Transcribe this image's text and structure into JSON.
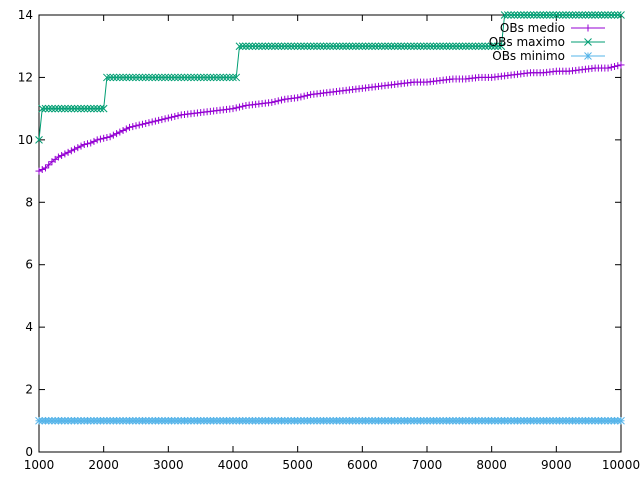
{
  "chart_data": {
    "type": "line",
    "xlim": [
      1000,
      10000
    ],
    "ylim": [
      0,
      14
    ],
    "xticks": [
      1000,
      2000,
      3000,
      4000,
      5000,
      6000,
      7000,
      8000,
      9000,
      10000
    ],
    "yticks": [
      0,
      2,
      4,
      6,
      8,
      10,
      12,
      14
    ],
    "grid": false,
    "legend_position": "top-right",
    "series": [
      {
        "name": "OBs medio",
        "color": "#9400d3",
        "marker": "plus",
        "x": [
          1000,
          1050,
          1100,
          1150,
          1200,
          1300,
          1400,
          1500,
          1600,
          1700,
          1800,
          1900,
          2000,
          2100,
          2200,
          2300,
          2400,
          2500,
          2600,
          2700,
          2800,
          2900,
          3000,
          3200,
          3400,
          3600,
          3800,
          4000,
          4200,
          4400,
          4600,
          4800,
          5000,
          5200,
          5400,
          5600,
          5800,
          6000,
          6200,
          6400,
          6600,
          6800,
          7000,
          7200,
          7400,
          7600,
          7800,
          8000,
          8200,
          8400,
          8600,
          8800,
          9000,
          9200,
          9400,
          9600,
          9800,
          10000
        ],
        "y": [
          9.0,
          9.05,
          9.1,
          9.2,
          9.3,
          9.45,
          9.55,
          9.65,
          9.75,
          9.85,
          9.9,
          10.0,
          10.05,
          10.1,
          10.2,
          10.3,
          10.4,
          10.45,
          10.5,
          10.55,
          10.6,
          10.65,
          10.7,
          10.8,
          10.85,
          10.9,
          10.95,
          11.0,
          11.1,
          11.15,
          11.2,
          11.3,
          11.35,
          11.45,
          11.5,
          11.55,
          11.6,
          11.65,
          11.7,
          11.75,
          11.8,
          11.85,
          11.85,
          11.9,
          11.95,
          11.95,
          12.0,
          12.0,
          12.05,
          12.1,
          12.15,
          12.15,
          12.2,
          12.2,
          12.25,
          12.3,
          12.3,
          12.4
        ]
      },
      {
        "name": "OBs maximo",
        "color": "#009e73",
        "marker": "cross",
        "x": [
          1000,
          1050,
          2000,
          2050,
          4050,
          4100,
          8150,
          8200,
          10000
        ],
        "y": [
          10,
          11,
          11,
          12,
          12,
          13,
          13,
          14,
          14
        ]
      },
      {
        "name": "OBs minimo",
        "color": "#56b4e9",
        "marker": "star",
        "x": [
          1000,
          10000
        ],
        "y": [
          1,
          1
        ]
      }
    ]
  }
}
